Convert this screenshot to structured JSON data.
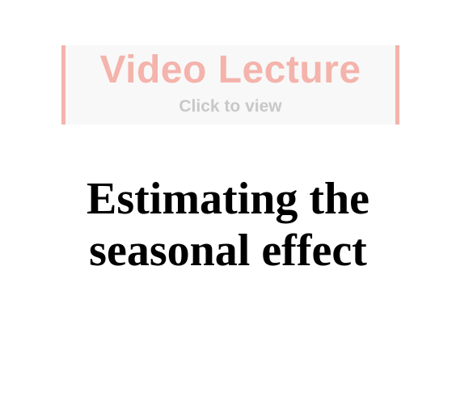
{
  "video_banner": {
    "title": "Video Lecture",
    "subtitle": "Click to view",
    "accent_color": "#f4b3ab",
    "subtitle_color": "#c8c8c8",
    "background_color": "#f8f8f8"
  },
  "lesson": {
    "title_line1": "Estimating the",
    "title_line2": "seasonal effect"
  }
}
